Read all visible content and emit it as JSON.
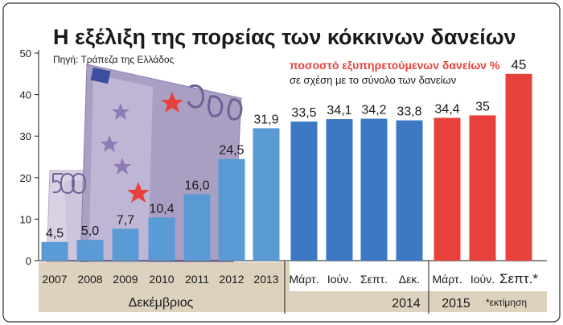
{
  "title": "Η εξέλιξη της πορείας των κόκκινων δανείων",
  "source": "Πηγή: Τράπεζα της Ελλάδος",
  "legend": {
    "main": "ποσοστό εξυπηρετούμενων δανείων %",
    "sub": "σε σχέση με το σύνολο των δανείων"
  },
  "footnote": "*εκτίμηση",
  "colors": {
    "annual": "#5b9bd5",
    "quarterly_2014": "#3c78c3",
    "quarterly_2015": "#e8413c",
    "group_band": "#dcd2bd"
  },
  "chart_data": {
    "type": "bar",
    "ylim": [
      0,
      50
    ],
    "yticks": [
      0,
      10,
      20,
      30,
      40,
      50
    ],
    "categories": [
      "2007",
      "2008",
      "2009",
      "2010",
      "2011",
      "2012",
      "2013",
      "Μάρτ.",
      "Ιούν.",
      "Σεπτ.",
      "Δεκ.",
      "Μάρτ.",
      "Ιούν.",
      "Σεπτ.*"
    ],
    "values": [
      4.5,
      5.0,
      7.7,
      10.4,
      16.0,
      24.5,
      31.9,
      33.5,
      34.1,
      34.2,
      33.8,
      34.4,
      35,
      45
    ],
    "value_labels": [
      "4,5",
      "5,0",
      "7,7",
      "10,4",
      "16,0",
      "24,5",
      "31,9",
      "33,5",
      "34,1",
      "34,2",
      "33,8",
      "34,4",
      "35",
      "45"
    ],
    "groups": [
      {
        "label": "Δεκέμβριος",
        "start": 0,
        "end": 6
      },
      {
        "label": "2014",
        "start": 7,
        "end": 10
      },
      {
        "label": "2015",
        "start": 11,
        "end": 13
      }
    ]
  }
}
